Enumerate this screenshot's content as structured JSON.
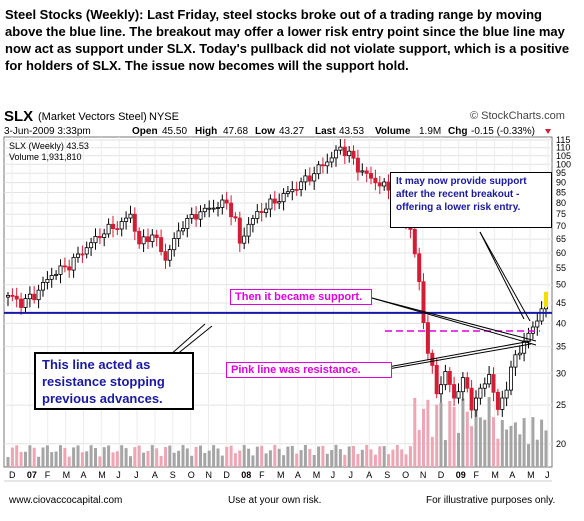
{
  "commentary": "Steel Stocks (Weekly):  Last Friday, steel stocks broke out of a trading range by moving above the blue line.  The breakout may offer a lower risk entry point since the blue line may now act as support under SLX.  Today's pullback did not violate support, which is a positive for holders of SLX.  The issue now becomes will the support hold.",
  "header": {
    "symbol": "SLX",
    "name": "(Market Vectors Steel)",
    "exchange": "NYSE",
    "brand": "© StockCharts.com",
    "date": "3-Jun-2009 3:33pm",
    "open_label": "Open",
    "open": "45.50",
    "high_label": "High",
    "high": "47.68",
    "low_label": "Low",
    "low": "43.27",
    "last_label": "Last",
    "last": "43.53",
    "volume_label": "Volume",
    "volume": "1.9M",
    "chg_label": "Chg",
    "chg": "-0.15 (-0.33%)"
  },
  "legend": {
    "price": "SLX (Weekly) 43.53",
    "volume": "Volume 1,931,810"
  },
  "annotations": {
    "support_top": "It may now provide support after the recent breakout - offering a lower risk entry.",
    "became_support": "Then it became support.",
    "pink_resistance": "Pink line was resistance.",
    "blue_resistance": "This line acted as resistance stopping previous advances."
  },
  "footer": {
    "site": "www.ciovaccocapital.com",
    "risk": "Use at your own risk.",
    "purpose": "For illustrative purposes only."
  },
  "colors": {
    "up": "#000000",
    "down": "#d41c35",
    "volume_up": "#a5a5a5",
    "volume_down": "#eda6b3",
    "blue_line": "#1717a8",
    "pink_line": "#e000e0",
    "note_text": "#1a1aa0",
    "highlight": "#f0e000"
  },
  "chart_data": {
    "type": "candlestick",
    "interval": "weekly",
    "y_scale": "log",
    "y_ticks": [
      20,
      25,
      30,
      35,
      40,
      45,
      50,
      55,
      60,
      65,
      70,
      75,
      80,
      85,
      90,
      95,
      100,
      105,
      110,
      115
    ],
    "ylim": [
      17.5,
      117
    ],
    "x_ticks": [
      "D",
      "07",
      "F",
      "M",
      "A",
      "M",
      "J",
      "J",
      "A",
      "S",
      "O",
      "N",
      "D",
      "08",
      "F",
      "M",
      "A",
      "M",
      "J",
      "J",
      "A",
      "S",
      "O",
      "N",
      "D",
      "09",
      "F",
      "M",
      "A",
      "M",
      "J"
    ],
    "blue_line_value": 42.5,
    "pink_line_value": 38.3,
    "anchors": [
      [
        0,
        47
      ],
      [
        3,
        45
      ],
      [
        6,
        47
      ],
      [
        10,
        53
      ],
      [
        14,
        56
      ],
      [
        18,
        62
      ],
      [
        22,
        68
      ],
      [
        26,
        71
      ],
      [
        28,
        75
      ],
      [
        30,
        63
      ],
      [
        33,
        67
      ],
      [
        36,
        58
      ],
      [
        40,
        71
      ],
      [
        44,
        76
      ],
      [
        48,
        79
      ],
      [
        50,
        80
      ],
      [
        52,
        72
      ],
      [
        53,
        63
      ],
      [
        55,
        71
      ],
      [
        58,
        77
      ],
      [
        62,
        82
      ],
      [
        66,
        88
      ],
      [
        70,
        95
      ],
      [
        72,
        100
      ],
      [
        74,
        104
      ],
      [
        76,
        110
      ],
      [
        78,
        106
      ],
      [
        80,
        98
      ],
      [
        83,
        92
      ],
      [
        86,
        88
      ],
      [
        88,
        85
      ],
      [
        90,
        75
      ],
      [
        92,
        69
      ],
      [
        94,
        50
      ],
      [
        95,
        41
      ],
      [
        96,
        34
      ],
      [
        98,
        27
      ],
      [
        100,
        30
      ],
      [
        102,
        26
      ],
      [
        104,
        29
      ],
      [
        106,
        25
      ],
      [
        108,
        27
      ],
      [
        110,
        30
      ],
      [
        111,
        27
      ],
      [
        112,
        24
      ],
      [
        114,
        28
      ],
      [
        116,
        33
      ],
      [
        118,
        36
      ],
      [
        120,
        39
      ],
      [
        121,
        41
      ],
      [
        122,
        44
      ],
      [
        123,
        43.53
      ]
    ]
  }
}
